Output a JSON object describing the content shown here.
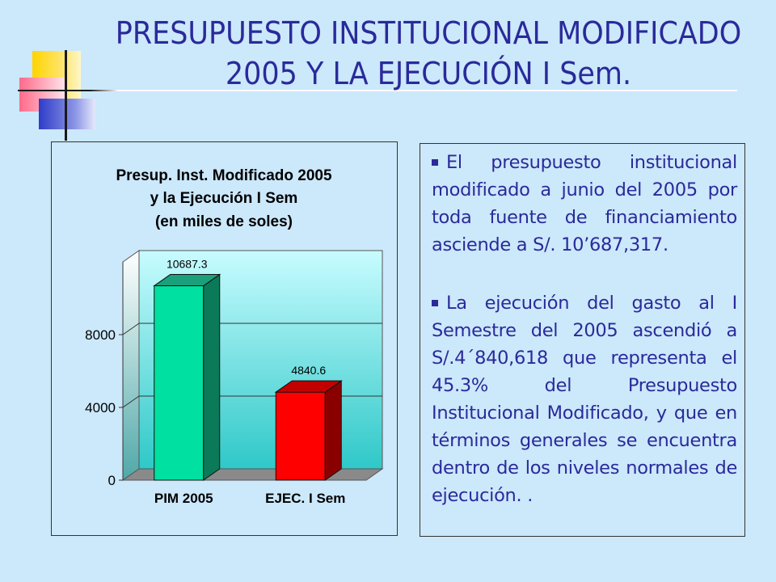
{
  "slide": {
    "title_line1": "PRESUPUESTO INSTITUCIONAL MODIFICADO",
    "title_line2": "2005 Y LA EJECUCIÓN I Sem."
  },
  "colors": {
    "background": "#cce8fb",
    "title_text": "#2a2a9a",
    "bar_pim": "#00e0a0",
    "bar_ejec": "#ff0000",
    "plot_top": "#c8fcff",
    "plot_bottom": "#2fc8c8"
  },
  "bullets": [
    {
      "text": "El presupuesto institucional modificado a junio del 2005 por toda fuente de financiamiento asciende a S/. 10’687,317."
    },
    {
      "text": "La ejecución del gasto al I Semestre del 2005 ascendió a S/.4´840,618 que representa el 45.3% del Presupuesto Institucional Modificado, y que en términos generales se encuentra dentro de los niveles normales de ejecución. ."
    }
  ],
  "chart_data": {
    "type": "bar",
    "title_lines": [
      "Presup. Inst. Modificado 2005",
      "y la Ejecución I Sem",
      "(en miles de soles)"
    ],
    "categories": [
      "PIM 2005",
      "EJEC. I Sem"
    ],
    "values": [
      10687.3,
      4840.6
    ],
    "value_labels": [
      "10687.3",
      "4840.6"
    ],
    "ylim": [
      0,
      12000
    ],
    "yticks": [
      0,
      4000,
      8000
    ],
    "ytick_labels": [
      "0",
      "4000",
      "8000"
    ],
    "gridlines": [
      4000,
      8000
    ],
    "three_d": true,
    "legend": "none"
  }
}
